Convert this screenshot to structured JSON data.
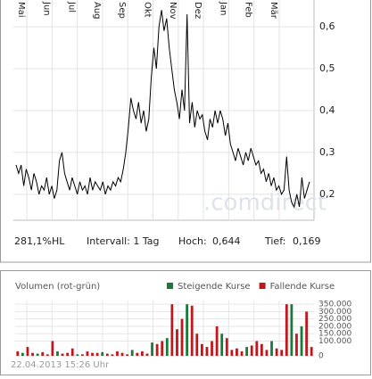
{
  "chart_data": [
    {
      "type": "line",
      "color": "#000000",
      "x_labels": [
        "Mai",
        "Jun",
        "Jul",
        "Aug",
        "Sep",
        "Okt",
        "Nov",
        "Dez",
        "Jan",
        "Feb",
        "Mär"
      ],
      "values": [
        0.27,
        0.25,
        0.27,
        0.22,
        0.26,
        0.24,
        0.21,
        0.25,
        0.23,
        0.2,
        0.22,
        0.21,
        0.24,
        0.2,
        0.22,
        0.19,
        0.21,
        0.28,
        0.3,
        0.25,
        0.23,
        0.21,
        0.24,
        0.22,
        0.2,
        0.23,
        0.21,
        0.22,
        0.2,
        0.24,
        0.21,
        0.23,
        0.22,
        0.21,
        0.23,
        0.2,
        0.22,
        0.21,
        0.23,
        0.22,
        0.24,
        0.23,
        0.26,
        0.3,
        0.36,
        0.43,
        0.4,
        0.38,
        0.42,
        0.37,
        0.4,
        0.35,
        0.38,
        0.48,
        0.55,
        0.5,
        0.6,
        0.64,
        0.59,
        0.62,
        0.55,
        0.5,
        0.45,
        0.42,
        0.38,
        0.45,
        0.4,
        0.63,
        0.37,
        0.42,
        0.36,
        0.4,
        0.38,
        0.39,
        0.35,
        0.33,
        0.38,
        0.36,
        0.4,
        0.37,
        0.4,
        0.38,
        0.34,
        0.37,
        0.32,
        0.3,
        0.28,
        0.31,
        0.29,
        0.27,
        0.3,
        0.28,
        0.31,
        0.29,
        0.27,
        0.28,
        0.25,
        0.26,
        0.23,
        0.25,
        0.22,
        0.24,
        0.21,
        0.22,
        0.2,
        0.21,
        0.29,
        0.21,
        0.18,
        0.17,
        0.2,
        0.17,
        0.24,
        0.19,
        0.21,
        0.23
      ],
      "ylim": [
        0.138,
        0.664
      ],
      "yticks": [
        {
          "value": 0.2,
          "label": "0,2"
        },
        {
          "value": 0.3,
          "label": "0,3"
        },
        {
          "value": 0.4,
          "label": "0,4"
        },
        {
          "value": 0.5,
          "label": "0,5"
        },
        {
          "value": 0.6,
          "label": "0,6"
        }
      ],
      "grid": true,
      "watermark": ".comdirect",
      "stats": [
        "281,1%HL",
        "Intervall: 1 Tag",
        "Hoch:",
        "0,644",
        "Tief:",
        "0,169"
      ]
    },
    {
      "type": "bar",
      "title": "Volumen (rot-grün)",
      "series": [
        {
          "name": "Steigende Kurse",
          "color": "#1a7a3a",
          "values": [
            null,
            20000,
            null,
            null,
            15000,
            null,
            null,
            null,
            30000,
            null,
            null,
            null,
            10000,
            null,
            null,
            null,
            null,
            25000,
            null,
            null,
            null,
            null,
            null,
            40000,
            null,
            null,
            null,
            90000,
            null,
            null,
            120000,
            null,
            null,
            null,
            350000,
            null,
            null,
            null,
            null,
            null,
            null,
            150000,
            null,
            null,
            null,
            null,
            60000,
            null,
            null,
            null,
            null,
            100000,
            null,
            null,
            null,
            350000,
            null,
            200000,
            null,
            null
          ]
        },
        {
          "name": "Fallende Kurse",
          "color": "#c0161c",
          "values": [
            30000,
            null,
            60000,
            20000,
            null,
            25000,
            10000,
            100000,
            null,
            15000,
            20000,
            50000,
            null,
            10000,
            30000,
            20000,
            20000,
            null,
            15000,
            10000,
            30000,
            20000,
            10000,
            null,
            20000,
            30000,
            15000,
            null,
            80000,
            100000,
            null,
            350000,
            180000,
            250000,
            null,
            340000,
            150000,
            80000,
            60000,
            100000,
            200000,
            null,
            120000,
            40000,
            50000,
            30000,
            null,
            70000,
            100000,
            80000,
            40000,
            null,
            50000,
            40000,
            350000,
            null,
            150000,
            null,
            300000,
            60000
          ]
        }
      ],
      "ylim": [
        0,
        375000
      ],
      "yticks": [
        0,
        {
          "value": 100000,
          "label": "100.000"
        },
        {
          "value": 150000,
          "label": "150.000"
        },
        {
          "value": 200000,
          "label": "200.000"
        },
        {
          "value": 250000,
          "label": "250.000"
        },
        {
          "value": 300000,
          "label": "300.000"
        },
        {
          "value": 350000,
          "label": "350.000"
        }
      ],
      "timestamp": "22.04.2013 15:26 Uhr"
    }
  ]
}
